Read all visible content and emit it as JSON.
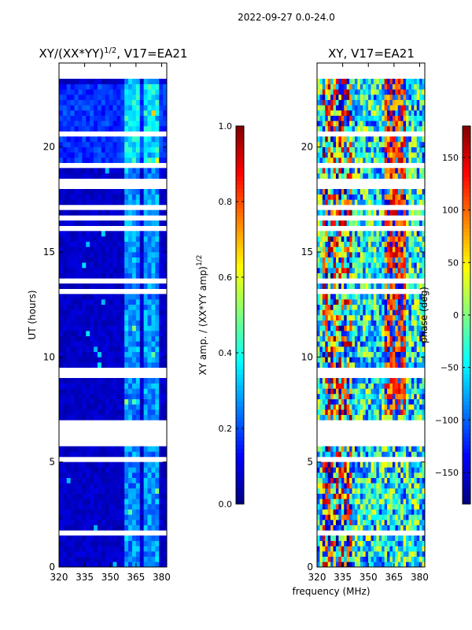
{
  "suptitle": "2022-09-27 0.0-24.0",
  "xlabel_shared": "frequency (MHz)",
  "chart_data": [
    {
      "type": "heatmap",
      "title_main": "XY/(XX*YY)",
      "title_sup": "1/2",
      "title_rest": ", V17=EA21",
      "ylabel": "UT (hours)",
      "xlim": [
        320,
        383
      ],
      "ylim": [
        0,
        24
      ],
      "xticks": [
        320,
        335,
        350,
        365,
        380
      ],
      "yticks": [
        0,
        5,
        10,
        15,
        20
      ],
      "colorbar": {
        "label_main": "XY amp. / (XX*YY amp)",
        "label_sup": "1/2",
        "range": [
          0.0,
          1.0
        ],
        "ticks": [
          "0.0",
          "0.2",
          "0.4",
          "0.6",
          "0.8",
          "1.0"
        ],
        "tick_values": [
          0.0,
          0.2,
          0.4,
          0.6,
          0.8,
          1.0
        ],
        "colormap": "jet"
      },
      "gap_hours": [
        [
          5.8,
          7.0
        ],
        [
          18.0,
          18.4
        ],
        [
          19.0,
          19.3
        ],
        [
          23.2,
          24.0
        ]
      ],
      "bright_channels_mhz": [
        360.5,
        363,
        366,
        370,
        374,
        378
      ]
    },
    {
      "type": "heatmap",
      "title": "XY, V17=EA21",
      "xlim": [
        320,
        383
      ],
      "ylim": [
        0,
        24
      ],
      "xticks": [
        320,
        335,
        350,
        365,
        380
      ],
      "yticks": [
        0,
        5,
        10,
        15,
        20
      ],
      "colorbar": {
        "label": "phase (deg)",
        "range": [
          -180,
          180
        ],
        "ticks": [
          "150",
          "100",
          "50",
          "0",
          "−50",
          "−100",
          "−150"
        ],
        "tick_values": [
          150,
          100,
          50,
          0,
          -50,
          -100,
          -150
        ],
        "colormap": "jet"
      },
      "gap_hours": [
        [
          5.8,
          7.0
        ],
        [
          18.0,
          18.4
        ],
        [
          19.0,
          19.3
        ],
        [
          23.2,
          24.0
        ]
      ]
    }
  ]
}
